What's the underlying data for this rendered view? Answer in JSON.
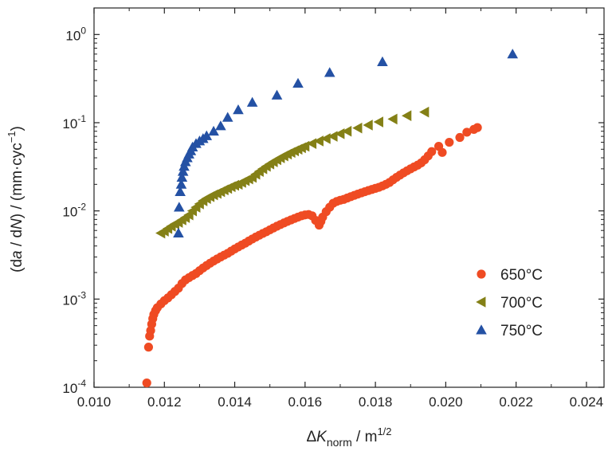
{
  "chart_data": {
    "type": "scatter",
    "title": "",
    "xlabel": "ΔK_norm / m^1/2",
    "ylabel": "(da / dN) / (mm·cyc^−1)",
    "y_scale": "log",
    "xlim": [
      0.01,
      0.0245
    ],
    "ylim": [
      0.0001,
      2.0
    ],
    "grid": false,
    "legend_position": "lower-right",
    "x_ticks": [
      {
        "value": 0.01,
        "label": "0.010"
      },
      {
        "value": 0.012,
        "label": "0.012"
      },
      {
        "value": 0.014,
        "label": "0.014"
      },
      {
        "value": 0.016,
        "label": "0.016"
      },
      {
        "value": 0.018,
        "label": "0.018"
      },
      {
        "value": 0.02,
        "label": "0.020"
      },
      {
        "value": 0.022,
        "label": "0.022"
      },
      {
        "value": 0.024,
        "label": "0.024"
      }
    ],
    "y_ticks": [
      {
        "value": 0.0001,
        "base": "10",
        "exp": "-4"
      },
      {
        "value": 0.001,
        "base": "10",
        "exp": "-3"
      },
      {
        "value": 0.01,
        "base": "10",
        "exp": "-2"
      },
      {
        "value": 0.1,
        "base": "10",
        "exp": "-1"
      },
      {
        "value": 1,
        "base": "10",
        "exp": "0"
      }
    ],
    "series": [
      {
        "name": "650°C",
        "marker": "circle",
        "color": "#ef4b23",
        "points": [
          [
            0.0115,
            0.000112
          ],
          [
            0.01155,
            0.000285
          ],
          [
            0.01158,
            0.00038
          ],
          [
            0.01161,
            0.00044
          ],
          [
            0.01164,
            0.00052
          ],
          [
            0.01167,
            0.0006
          ],
          [
            0.0117,
            0.00067
          ],
          [
            0.01175,
            0.00074
          ],
          [
            0.0118,
            0.0008
          ],
          [
            0.0119,
            0.00088
          ],
          [
            0.012,
            0.00096
          ],
          [
            0.0121,
            0.00103
          ],
          [
            0.0122,
            0.00112
          ],
          [
            0.0123,
            0.00122
          ],
          [
            0.0124,
            0.00133
          ],
          [
            0.0125,
            0.0015
          ],
          [
            0.0126,
            0.00165
          ],
          [
            0.0127,
            0.00175
          ],
          [
            0.0128,
            0.00185
          ],
          [
            0.0129,
            0.00195
          ],
          [
            0.013,
            0.0021
          ],
          [
            0.0131,
            0.00225
          ],
          [
            0.0132,
            0.0024
          ],
          [
            0.0133,
            0.00255
          ],
          [
            0.0134,
            0.0027
          ],
          [
            0.0135,
            0.00285
          ],
          [
            0.0136,
            0.003
          ],
          [
            0.0137,
            0.00315
          ],
          [
            0.0138,
            0.0033
          ],
          [
            0.0139,
            0.0035
          ],
          [
            0.014,
            0.0037
          ],
          [
            0.0141,
            0.0039
          ],
          [
            0.0142,
            0.0041
          ],
          [
            0.0143,
            0.0043
          ],
          [
            0.0144,
            0.00455
          ],
          [
            0.0145,
            0.0048
          ],
          [
            0.0146,
            0.00505
          ],
          [
            0.0147,
            0.0053
          ],
          [
            0.0148,
            0.00555
          ],
          [
            0.0149,
            0.0058
          ],
          [
            0.015,
            0.0061
          ],
          [
            0.0151,
            0.0064
          ],
          [
            0.0152,
            0.0067
          ],
          [
            0.0153,
            0.007
          ],
          [
            0.0154,
            0.0073
          ],
          [
            0.0155,
            0.0076
          ],
          [
            0.0156,
            0.0079
          ],
          [
            0.0157,
            0.0082
          ],
          [
            0.0158,
            0.0085
          ],
          [
            0.0159,
            0.0088
          ],
          [
            0.016,
            0.009
          ],
          [
            0.0161,
            0.0091
          ],
          [
            0.0162,
            0.0088
          ],
          [
            0.0163,
            0.0078
          ],
          [
            0.0164,
            0.0069
          ],
          [
            0.01645,
            0.0076
          ],
          [
            0.0165,
            0.0085
          ],
          [
            0.0166,
            0.0098
          ],
          [
            0.0167,
            0.011
          ],
          [
            0.0168,
            0.0122
          ],
          [
            0.0169,
            0.0128
          ],
          [
            0.017,
            0.0132
          ],
          [
            0.0171,
            0.0135
          ],
          [
            0.0172,
            0.014
          ],
          [
            0.0173,
            0.0145
          ],
          [
            0.0174,
            0.015
          ],
          [
            0.0175,
            0.0155
          ],
          [
            0.0176,
            0.016
          ],
          [
            0.0177,
            0.0165
          ],
          [
            0.0178,
            0.017
          ],
          [
            0.0179,
            0.0175
          ],
          [
            0.018,
            0.018
          ],
          [
            0.0181,
            0.0185
          ],
          [
            0.0182,
            0.0192
          ],
          [
            0.0183,
            0.02
          ],
          [
            0.0184,
            0.021
          ],
          [
            0.0185,
            0.0225
          ],
          [
            0.0186,
            0.024
          ],
          [
            0.0187,
            0.0255
          ],
          [
            0.0188,
            0.027
          ],
          [
            0.0189,
            0.0285
          ],
          [
            0.019,
            0.03
          ],
          [
            0.0191,
            0.0315
          ],
          [
            0.0192,
            0.033
          ],
          [
            0.0193,
            0.035
          ],
          [
            0.0194,
            0.038
          ],
          [
            0.0195,
            0.042
          ],
          [
            0.0196,
            0.047
          ],
          [
            0.0198,
            0.054
          ],
          [
            0.0199,
            0.046
          ],
          [
            0.0201,
            0.06
          ],
          [
            0.0204,
            0.068
          ],
          [
            0.0206,
            0.078
          ],
          [
            0.0208,
            0.084
          ],
          [
            0.0209,
            0.088
          ]
        ]
      },
      {
        "name": "700°C",
        "marker": "triangle-left",
        "color": "#848016",
        "points": [
          [
            0.0119,
            0.0056
          ],
          [
            0.012,
            0.0059
          ],
          [
            0.0121,
            0.0063
          ],
          [
            0.0122,
            0.0067
          ],
          [
            0.0123,
            0.0071
          ],
          [
            0.0124,
            0.0074
          ],
          [
            0.0125,
            0.0079
          ],
          [
            0.0126,
            0.0084
          ],
          [
            0.0127,
            0.009
          ],
          [
            0.0128,
            0.01
          ],
          [
            0.0129,
            0.011
          ],
          [
            0.013,
            0.012
          ],
          [
            0.0131,
            0.013
          ],
          [
            0.0132,
            0.0138
          ],
          [
            0.0133,
            0.0145
          ],
          [
            0.0134,
            0.0152
          ],
          [
            0.0135,
            0.0158
          ],
          [
            0.0136,
            0.0165
          ],
          [
            0.0137,
            0.0173
          ],
          [
            0.0138,
            0.018
          ],
          [
            0.0139,
            0.0188
          ],
          [
            0.014,
            0.0195
          ],
          [
            0.0141,
            0.02
          ],
          [
            0.0142,
            0.021
          ],
          [
            0.0143,
            0.022
          ],
          [
            0.0144,
            0.023
          ],
          [
            0.0145,
            0.024
          ],
          [
            0.0146,
            0.026
          ],
          [
            0.0147,
            0.028
          ],
          [
            0.0148,
            0.03
          ],
          [
            0.0149,
            0.032
          ],
          [
            0.015,
            0.034
          ],
          [
            0.0151,
            0.036
          ],
          [
            0.0152,
            0.038
          ],
          [
            0.0153,
            0.04
          ],
          [
            0.0154,
            0.042
          ],
          [
            0.0155,
            0.044
          ],
          [
            0.0156,
            0.046
          ],
          [
            0.0157,
            0.048
          ],
          [
            0.0158,
            0.05
          ],
          [
            0.0159,
            0.052
          ],
          [
            0.016,
            0.054
          ],
          [
            0.0162,
            0.058
          ],
          [
            0.0164,
            0.062
          ],
          [
            0.0166,
            0.066
          ],
          [
            0.0168,
            0.07
          ],
          [
            0.017,
            0.075
          ],
          [
            0.0172,
            0.08
          ],
          [
            0.0175,
            0.087
          ],
          [
            0.0178,
            0.094
          ],
          [
            0.0181,
            0.102
          ],
          [
            0.0185,
            0.11
          ],
          [
            0.0189,
            0.12
          ],
          [
            0.0194,
            0.132
          ]
        ]
      },
      {
        "name": "750°C",
        "marker": "triangle-up",
        "color": "#2451a4",
        "points": [
          [
            0.0124,
            0.0056
          ],
          [
            0.01242,
            0.011
          ],
          [
            0.01245,
            0.0165
          ],
          [
            0.01248,
            0.02
          ],
          [
            0.0125,
            0.024
          ],
          [
            0.01253,
            0.028
          ],
          [
            0.01256,
            0.032
          ],
          [
            0.0126,
            0.036
          ],
          [
            0.01265,
            0.04
          ],
          [
            0.0127,
            0.044
          ],
          [
            0.01275,
            0.048
          ],
          [
            0.0128,
            0.053
          ],
          [
            0.0129,
            0.058
          ],
          [
            0.013,
            0.062
          ],
          [
            0.0131,
            0.066
          ],
          [
            0.0132,
            0.071
          ],
          [
            0.0134,
            0.08
          ],
          [
            0.0136,
            0.092
          ],
          [
            0.0138,
            0.115
          ],
          [
            0.0141,
            0.14
          ],
          [
            0.0145,
            0.17
          ],
          [
            0.0152,
            0.205
          ],
          [
            0.0158,
            0.28
          ],
          [
            0.0167,
            0.37
          ],
          [
            0.0182,
            0.49
          ],
          [
            0.0219,
            0.6
          ]
        ]
      }
    ]
  }
}
